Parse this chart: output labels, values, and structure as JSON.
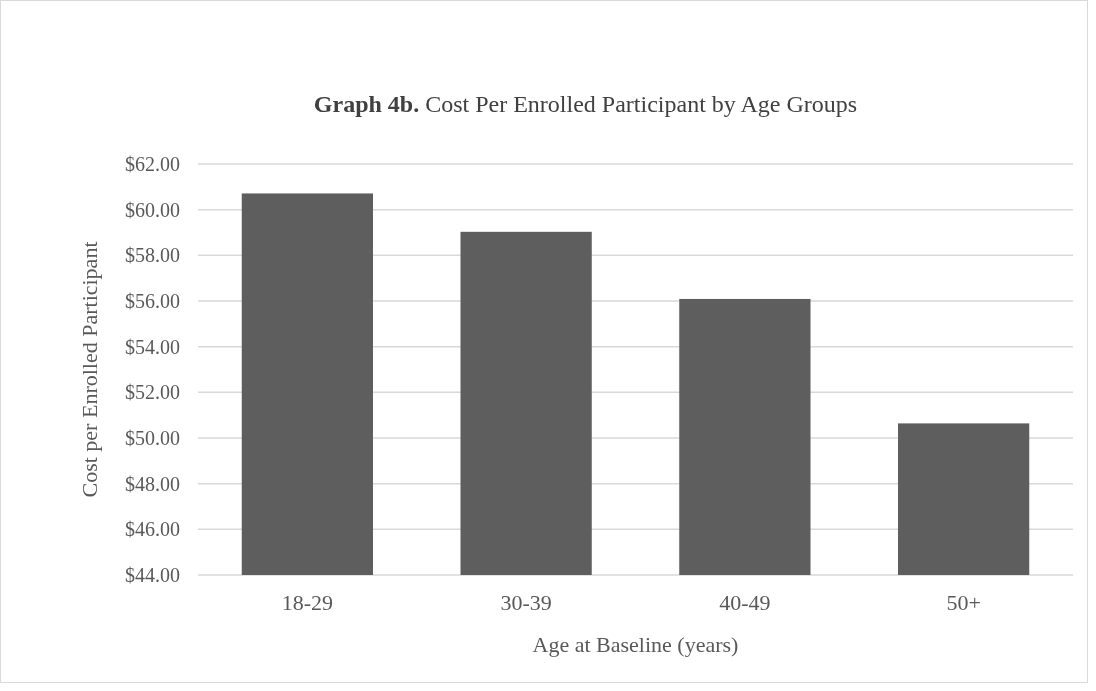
{
  "chart_data": {
    "type": "bar",
    "title": "Graph 4b. Cost Per Enrolled Participant by Age Groups",
    "xlabel": "Age at Baseline (years)",
    "ylabel": "Cost per Enrolled Participant",
    "categories": [
      "18-29",
      "30-39",
      "40-49",
      "50+"
    ],
    "values": [
      60.71,
      59.03,
      56.09,
      50.64
    ],
    "color": "#5e5e5e",
    "ylim": [
      44,
      62
    ],
    "yticks": [
      {
        "value": 44,
        "label": "$44.00"
      },
      {
        "value": 46,
        "label": "$46.00"
      },
      {
        "value": 48,
        "label": "$48.00"
      },
      {
        "value": 50,
        "label": "$50.00"
      },
      {
        "value": 52,
        "label": "$52.00"
      },
      {
        "value": 54,
        "label": "$54.00"
      },
      {
        "value": 56,
        "label": "$56.00"
      },
      {
        "value": 58,
        "label": "$58.00"
      },
      {
        "value": 60,
        "label": "$60.00"
      },
      {
        "value": 62,
        "label": "$62.00"
      }
    ],
    "grid": "y"
  }
}
